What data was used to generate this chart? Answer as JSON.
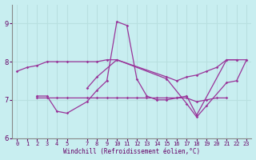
{
  "xlabel": "Windchill (Refroidissement éolien,°C)",
  "background_color": "#c8eef0",
  "grid_color": "#b8e0e0",
  "line_color": "#993399",
  "xlim": [
    -0.5,
    23.5
  ],
  "ylim": [
    6.0,
    9.5
  ],
  "yticks": [
    6,
    7,
    8,
    9
  ],
  "xticks": [
    0,
    1,
    2,
    3,
    4,
    5,
    7,
    8,
    9,
    10,
    11,
    12,
    13,
    14,
    15,
    16,
    17,
    18,
    19,
    20,
    21,
    22,
    23
  ],
  "series": [
    {
      "x": [
        0,
        1,
        2,
        3,
        4,
        5,
        7,
        8,
        9,
        10,
        15,
        16,
        17,
        18,
        19,
        20,
        21,
        22,
        23
      ],
      "y": [
        7.75,
        7.85,
        7.9,
        8.0,
        8.0,
        8.0,
        8.0,
        8.0,
        8.05,
        8.05,
        7.6,
        7.5,
        7.6,
        7.65,
        7.75,
        7.85,
        8.05,
        8.05,
        8.05
      ]
    },
    {
      "x": [
        2,
        3,
        4,
        5,
        7,
        8,
        9,
        10,
        11,
        12,
        13,
        14,
        15,
        16,
        17,
        18,
        21,
        22
      ],
      "y": [
        7.1,
        7.1,
        6.7,
        6.65,
        6.95,
        7.25,
        7.5,
        9.05,
        8.95,
        7.55,
        7.1,
        7.0,
        7.0,
        7.05,
        7.1,
        6.6,
        8.05,
        8.05
      ]
    },
    {
      "x": [
        2,
        3,
        4,
        5,
        7,
        8,
        9,
        10,
        11,
        12,
        13,
        14,
        15,
        16,
        17,
        18,
        19,
        20,
        21
      ],
      "y": [
        7.05,
        7.05,
        7.05,
        7.05,
        7.05,
        7.05,
        7.05,
        7.05,
        7.05,
        7.05,
        7.05,
        7.05,
        7.05,
        7.05,
        7.05,
        6.95,
        7.0,
        7.05,
        7.05
      ]
    },
    {
      "x": [
        7,
        8,
        10,
        15,
        17,
        18,
        19,
        21,
        22,
        23
      ],
      "y": [
        7.3,
        7.6,
        8.05,
        7.55,
        6.9,
        6.55,
        6.85,
        7.45,
        7.5,
        8.05
      ]
    }
  ]
}
